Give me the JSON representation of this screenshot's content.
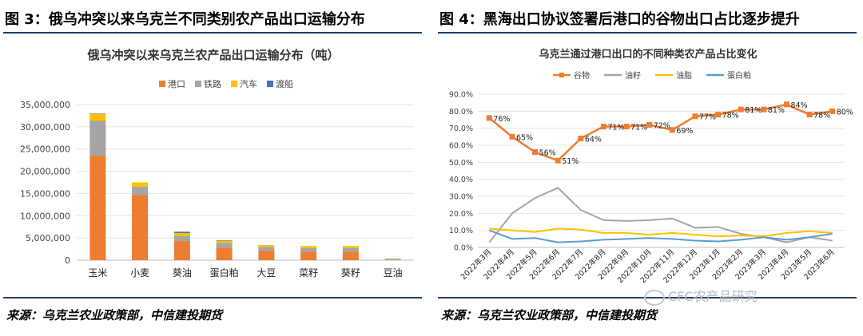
{
  "left": {
    "figure_title": "图 3：俄乌冲突以来乌克兰不同类别农产品出口运输分布",
    "source": "来源：乌克兰农业政策部，中信建投期货"
  },
  "right": {
    "figure_title": "图 4：黑海出口协议签署后港口的谷物出口占比逐步提升",
    "source": "来源：乌克兰农业政策部，中信建投期货",
    "watermark": "CFC农产品研究"
  },
  "chart_data": [
    {
      "type": "bar",
      "stacked": true,
      "title": "俄乌冲突以来乌克兰农产品出口运输分布（吨）",
      "legend_position": "top",
      "categories": [
        "玉米",
        "小麦",
        "葵油",
        "蛋白粕",
        "大豆",
        "菜籽",
        "葵籽",
        "豆油"
      ],
      "series": [
        {
          "name": "港口",
          "color": "#ed7d31",
          "values": [
            23500000,
            14700000,
            4300000,
            2800000,
            2200000,
            1900000,
            1900000,
            0
          ]
        },
        {
          "name": "铁路",
          "color": "#a5a5a5",
          "values": [
            7900000,
            1800000,
            1100000,
            1100000,
            800000,
            800000,
            800000,
            300000
          ]
        },
        {
          "name": "汽车",
          "color": "#ffc000",
          "values": [
            1500000,
            1000000,
            700000,
            500000,
            400000,
            500000,
            500000,
            100000
          ]
        },
        {
          "name": "渡船",
          "color": "#4472c4",
          "values": [
            100000,
            0,
            300000,
            100000,
            0,
            0,
            0,
            0
          ]
        }
      ],
      "yticks": [
        "0",
        "5,000,000",
        "10,000,000",
        "15,000,000",
        "20,000,000",
        "25,000,000",
        "30,000,000",
        "35,000,000"
      ],
      "ylim": [
        0,
        35000000
      ],
      "grid": true
    },
    {
      "type": "line",
      "title": "乌克兰通过港口出口的不同种类农产品占比变化",
      "legend_position": "top",
      "categories": [
        "2022年3月",
        "2022年4月",
        "2022年5月",
        "2022年6月",
        "2022年7月",
        "2022年8月",
        "2022年9月",
        "2022年10月",
        "2022年11月",
        "2022年12月",
        "2023年1月",
        "2023年2月",
        "2023年3月",
        "2023年4月",
        "2023年5月",
        "2023年6月"
      ],
      "series": [
        {
          "name": "谷物",
          "color": "#ed7d31",
          "values": [
            0.76,
            0.65,
            0.56,
            0.51,
            0.64,
            0.71,
            0.71,
            0.72,
            0.69,
            0.77,
            0.78,
            0.81,
            0.81,
            0.84,
            0.78,
            0.8
          ],
          "labels": [
            "76%",
            "65%",
            "56%",
            "51%",
            "64%",
            "71%",
            "71%",
            "72%",
            "69%",
            "77%",
            "78%",
            "81%",
            "81%",
            "84%",
            "78%",
            "80%"
          ]
        },
        {
          "name": "油籽",
          "color": "#a5a5a5",
          "values": [
            0.03,
            0.2,
            0.29,
            0.35,
            0.22,
            0.16,
            0.155,
            0.16,
            0.17,
            0.115,
            0.12,
            0.08,
            0.06,
            0.03,
            0.06,
            0.04
          ]
        },
        {
          "name": "油脂",
          "color": "#ffc000",
          "values": [
            0.11,
            0.1,
            0.09,
            0.11,
            0.105,
            0.085,
            0.085,
            0.075,
            0.085,
            0.075,
            0.065,
            0.07,
            0.065,
            0.085,
            0.095,
            0.085
          ]
        },
        {
          "name": "蛋白粕",
          "color": "#5b9bd5",
          "values": [
            0.1,
            0.05,
            0.055,
            0.03,
            0.035,
            0.045,
            0.05,
            0.055,
            0.05,
            0.04,
            0.035,
            0.045,
            0.06,
            0.045,
            0.06,
            0.08
          ]
        }
      ],
      "yticks": [
        "0.0%",
        "10.0%",
        "20.0%",
        "30.0%",
        "40.0%",
        "50.0%",
        "60.0%",
        "70.0%",
        "80.0%",
        "90.0%"
      ],
      "ylim": [
        0,
        0.9
      ],
      "grid": true
    }
  ]
}
